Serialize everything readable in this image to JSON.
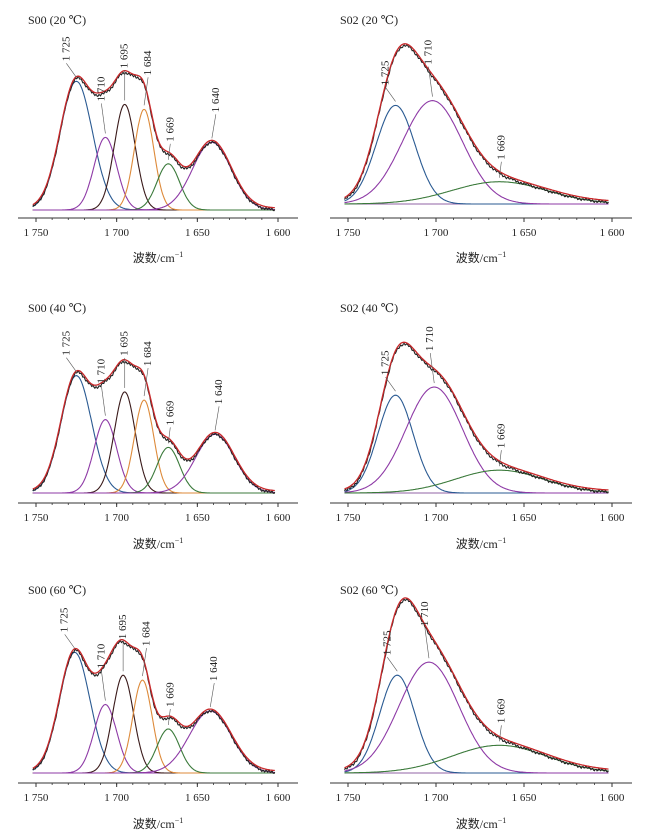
{
  "units": {
    "superscript": "−1"
  },
  "chart_data": [
    {
      "type": "line",
      "title": "S00 (20 ℃)",
      "xlabel": "波数/cm",
      "x_reversed": true,
      "xlim": [
        1750,
        1600
      ],
      "xticks": [
        1750,
        1700,
        1650,
        1600
      ],
      "xtick_labels": [
        "1 750",
        "1 700",
        "1 650",
        "1 600"
      ],
      "peaks": [
        {
          "label": "1 725",
          "center": 1725,
          "height": 0.78,
          "sigma": 10,
          "color": "#2a5a92"
        },
        {
          "label": "1 710",
          "center": 1707,
          "height": 0.44,
          "sigma": 7,
          "color": "#8e3aa6"
        },
        {
          "label": "1 695",
          "center": 1695,
          "height": 0.64,
          "sigma": 6.5,
          "color": "#3a1a1a"
        },
        {
          "label": "1 684",
          "center": 1683,
          "height": 0.61,
          "sigma": 6,
          "color": "#dd8a3a"
        },
        {
          "label": "1 669",
          "center": 1668,
          "height": 0.28,
          "sigma": 7,
          "color": "#3b7a3b"
        },
        {
          "label": "1 640",
          "center": 1641,
          "height": 0.41,
          "sigma": 12,
          "color": "#8e3aa6"
        }
      ]
    },
    {
      "type": "line",
      "title": "S02 (20 ℃)",
      "xlabel": "波数/cm",
      "x_reversed": true,
      "xlim": [
        1750,
        1600
      ],
      "xticks": [
        1750,
        1700,
        1650,
        1600
      ],
      "xtick_labels": [
        "1 750",
        "1 700",
        "1 650",
        "1 600"
      ],
      "peaks": [
        {
          "label": "1 725",
          "center": 1723,
          "height": 0.62,
          "sigma": 11,
          "color": "#2a5a92"
        },
        {
          "label": "1 710",
          "center": 1702,
          "height": 0.65,
          "sigma": 17,
          "color": "#8e3aa6"
        },
        {
          "label": "1 669",
          "center": 1664,
          "height": 0.14,
          "sigma": 27,
          "color": "#3b7a3b"
        }
      ]
    },
    {
      "type": "line",
      "title": "S00 (40 ℃)",
      "xlabel": "波数/cm",
      "x_reversed": true,
      "xlim": [
        1750,
        1600
      ],
      "xticks": [
        1750,
        1700,
        1650,
        1600
      ],
      "xtick_labels": [
        "1 750",
        "1 700",
        "1 650",
        "1 600"
      ],
      "peaks": [
        {
          "label": "1 725",
          "center": 1725,
          "height": 0.72,
          "sigma": 9.5,
          "color": "#2a5a92"
        },
        {
          "label": "1 710",
          "center": 1707,
          "height": 0.45,
          "sigma": 7,
          "color": "#8e3aa6"
        },
        {
          "label": "1 695",
          "center": 1695,
          "height": 0.62,
          "sigma": 6.5,
          "color": "#3a1a1a"
        },
        {
          "label": "1 684",
          "center": 1683,
          "height": 0.57,
          "sigma": 6,
          "color": "#dd8a3a"
        },
        {
          "label": "1 669",
          "center": 1668,
          "height": 0.28,
          "sigma": 7,
          "color": "#3b7a3b"
        },
        {
          "label": "1 640",
          "center": 1639,
          "height": 0.36,
          "sigma": 12,
          "color": "#8e3aa6"
        }
      ]
    },
    {
      "type": "line",
      "title": "S02 (40 ℃)",
      "xlabel": "波数/cm",
      "x_reversed": true,
      "xlim": [
        1750,
        1600
      ],
      "xticks": [
        1750,
        1700,
        1650,
        1600
      ],
      "xtick_labels": [
        "1 750",
        "1 700",
        "1 650",
        "1 600"
      ],
      "peaks": [
        {
          "label": "1 725",
          "center": 1723,
          "height": 0.6,
          "sigma": 10,
          "color": "#2a5a92"
        },
        {
          "label": "1 710",
          "center": 1701,
          "height": 0.65,
          "sigma": 16,
          "color": "#8e3aa6"
        },
        {
          "label": "1 669",
          "center": 1664,
          "height": 0.14,
          "sigma": 25,
          "color": "#3b7a3b"
        }
      ]
    },
    {
      "type": "line",
      "title": "S00 (60 ℃)",
      "xlabel": "波数/cm",
      "x_reversed": true,
      "xlim": [
        1750,
        1600
      ],
      "xticks": [
        1750,
        1700,
        1650,
        1600
      ],
      "xtick_labels": [
        "1 750",
        "1 700",
        "1 650",
        "1 600"
      ],
      "peaks": [
        {
          "label": "1 725",
          "center": 1726,
          "height": 0.74,
          "sigma": 9.5,
          "color": "#2a5a92"
        },
        {
          "label": "1 710",
          "center": 1707,
          "height": 0.42,
          "sigma": 7,
          "color": "#8e3aa6"
        },
        {
          "label": "1 695",
          "center": 1696,
          "height": 0.6,
          "sigma": 6.5,
          "color": "#3a1a1a"
        },
        {
          "label": "1 684",
          "center": 1684,
          "height": 0.57,
          "sigma": 6,
          "color": "#dd8a3a"
        },
        {
          "label": "1 669",
          "center": 1668,
          "height": 0.27,
          "sigma": 7,
          "color": "#3b7a3b"
        },
        {
          "label": "1 640",
          "center": 1642,
          "height": 0.38,
          "sigma": 13,
          "color": "#8e3aa6"
        }
      ]
    },
    {
      "type": "line",
      "title": "S02 (60 ℃)",
      "xlabel": "波数/cm",
      "x_reversed": true,
      "xlim": [
        1750,
        1600
      ],
      "xticks": [
        1750,
        1700,
        1650,
        1600
      ],
      "xtick_labels": [
        "1 750",
        "1 700",
        "1 650",
        "1 600"
      ],
      "peaks": [
        {
          "label": "1 725",
          "center": 1722,
          "height": 0.6,
          "sigma": 10,
          "color": "#2a5a92"
        },
        {
          "label": "1 710",
          "center": 1704,
          "height": 0.68,
          "sigma": 17,
          "color": "#8e3aa6"
        },
        {
          "label": "1 669",
          "center": 1664,
          "height": 0.17,
          "sigma": 27,
          "color": "#3b7a3b"
        }
      ]
    }
  ],
  "colors": {
    "fit": "#c8282a",
    "measured": "#222222",
    "baseline": "#6b2f86",
    "axis": "#333333"
  }
}
